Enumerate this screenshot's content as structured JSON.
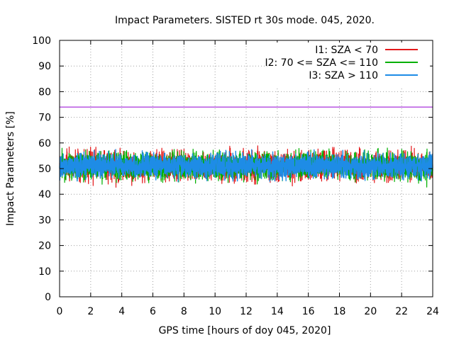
{
  "chart_data": {
    "type": "line",
    "title": "Impact Parameters. SISTED rt 30s mode. 045, 2020.",
    "xlabel": "GPS time [hours of doy 045, 2020]",
    "ylabel": "Impact Parameters [%]",
    "xlim": [
      0,
      24
    ],
    "ylim": [
      0,
      100
    ],
    "x_ticks": [
      0,
      2,
      4,
      6,
      8,
      10,
      12,
      14,
      16,
      18,
      20,
      22,
      24
    ],
    "y_ticks": [
      0,
      10,
      20,
      30,
      40,
      50,
      60,
      70,
      80,
      90,
      100
    ],
    "grid": true,
    "legend_position": "top-right",
    "threshold_line": {
      "y": 74,
      "color": "#9400d3"
    },
    "series": [
      {
        "name": "I1: SZA < 70",
        "color": "#e41a1c",
        "mean": 51,
        "noise_range": [
          40,
          62
        ],
        "draw_order": 1
      },
      {
        "name": "I2: 70 <= SZA <= 110",
        "color": "#00b000",
        "mean": 51,
        "noise_range": [
          40,
          61
        ],
        "draw_order": 2
      },
      {
        "name": "I3: SZA > 110",
        "color": "#1e8ce6",
        "mean": 51,
        "noise_range": [
          42,
          60
        ],
        "draw_order": 3
      }
    ]
  }
}
